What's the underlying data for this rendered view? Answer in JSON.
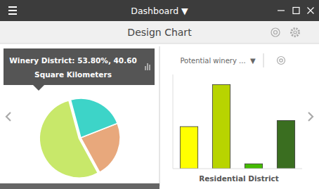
{
  "chart_data": [
    {
      "type": "pie",
      "title": "Design Chart",
      "annotations": [
        "Dashboard ▼",
        "Winery District: 53.80%, 40.60",
        "Square Kilometers"
      ],
      "values": [
        53.8,
        23.0,
        23.2
      ],
      "colors": [
        "#c8e86a",
        "#e8a87c",
        "#3dd4c8"
      ]
    },
    {
      "type": "bar",
      "title": "Potential winery ...  ▼",
      "xlabel": "Residential District",
      "categories": [
        null,
        null,
        null,
        null
      ],
      "values": [
        3.5,
        7.0,
        0.4,
        4.0
      ],
      "colors": [
        "#ffff00",
        "#b8d400",
        "#44bb00",
        "#3a6e20"
      ],
      "ylim": [
        0,
        7.84
      ],
      "tick_labels": false
    }
  ]
}
